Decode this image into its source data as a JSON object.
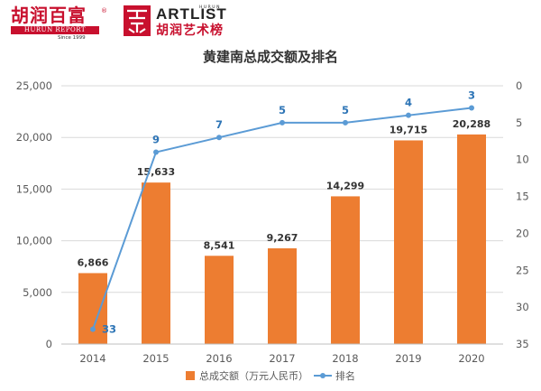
{
  "header": {
    "hurun_cn": "胡润百富",
    "hurun_registered": "®",
    "hurun_en": "HURUN REPORT",
    "hurun_since": "Since 1999",
    "artlist_en": "ARTLIST",
    "artlist_vertical": "HURUN",
    "artlist_cn": "胡润艺术榜"
  },
  "colors": {
    "bar": "#ed7d31",
    "line": "#5b9bd5",
    "label": "#333333",
    "rank_label": "#2e75b6",
    "axis": "#595959",
    "grid": "#d9d9d9"
  },
  "chart_data": {
    "type": "bar+line",
    "title": "黄建南总成交额及排名",
    "categories": [
      "2014",
      "2015",
      "2016",
      "2017",
      "2018",
      "2019",
      "2020"
    ],
    "series": [
      {
        "name": "总成交额（万元人民币）",
        "type": "bar",
        "axis": "left",
        "values": [
          6866,
          15633,
          8541,
          9267,
          14299,
          19715,
          20288
        ],
        "labels": [
          "6,866",
          "15,633",
          "8,541",
          "9,267",
          "14,299",
          "19,715",
          "20,288"
        ]
      },
      {
        "name": "排名",
        "type": "line",
        "axis": "right",
        "values": [
          33,
          9,
          7,
          5,
          5,
          4,
          3
        ],
        "labels": [
          "33",
          "9",
          "7",
          "5",
          "5",
          "4",
          "3"
        ]
      }
    ],
    "y_left": {
      "range": [
        0,
        25000
      ],
      "ticks": [
        "0",
        "5,000",
        "10,000",
        "15,000",
        "20,000",
        "25,000"
      ]
    },
    "y_right": {
      "range": [
        0,
        35
      ],
      "reversed": true,
      "ticks": [
        "0",
        "5",
        "10",
        "15",
        "20",
        "25",
        "30",
        "35"
      ]
    },
    "grid": true,
    "legend_position": "bottom"
  }
}
